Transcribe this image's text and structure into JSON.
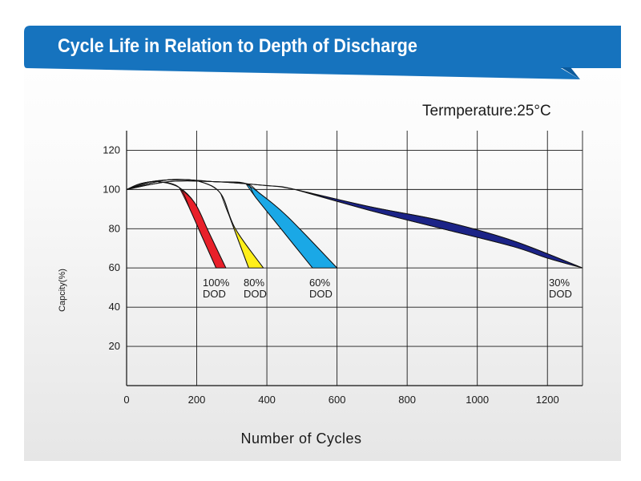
{
  "header": {
    "title": "Cycle Life in Relation to Depth of Discharge"
  },
  "temperature_label": "Termperature:25°C",
  "colors": {
    "banner": "#1673be",
    "banner_dark": "#0b5a9c"
  },
  "chart_data": {
    "type": "area",
    "title": "Cycle Life in Relation to Depth of Discharge",
    "xlabel": "Number of Cycles",
    "ylabel": "Capcity(%)",
    "xlim": [
      0,
      1300
    ],
    "ylim": [
      0,
      130
    ],
    "x_ticks": [
      0,
      200,
      400,
      600,
      800,
      1000,
      1200
    ],
    "y_ticks": [
      20,
      40,
      60,
      80,
      100,
      120
    ],
    "x_grid": [
      200,
      400,
      600,
      800,
      1000,
      1200,
      1300
    ],
    "y_grid": [
      20,
      40,
      60,
      80,
      100,
      120
    ],
    "grid": true,
    "annotation": "Termperature:25°C",
    "series": [
      {
        "label_lines": [
          "100%",
          "DOD"
        ],
        "color": "#e8202a",
        "upper": [
          [
            0,
            100
          ],
          [
            40,
            103
          ],
          [
            90,
            104
          ],
          [
            150,
            101
          ],
          [
            195,
            93
          ],
          [
            235,
            78
          ],
          [
            283,
            60
          ]
        ],
        "lower": [
          [
            0,
            100
          ],
          [
            40,
            103
          ],
          [
            90,
            104
          ],
          [
            150,
            101
          ],
          [
            183,
            89
          ],
          [
            215,
            76
          ],
          [
            255,
            60
          ]
        ]
      },
      {
        "label_lines": [
          "80%",
          "DOD"
        ],
        "color": "#ffef1a",
        "upper": [
          [
            0,
            100
          ],
          [
            70,
            104
          ],
          [
            140,
            105
          ],
          [
            210,
            104
          ],
          [
            268,
            98
          ],
          [
            310,
            80
          ],
          [
            390,
            60
          ]
        ],
        "lower": [
          [
            0,
            100
          ],
          [
            70,
            104
          ],
          [
            140,
            105
          ],
          [
            210,
            104
          ],
          [
            268,
            98
          ],
          [
            300,
            83
          ],
          [
            348,
            60
          ]
        ]
      },
      {
        "label_lines": [
          "60%",
          "DOD"
        ],
        "color": "#1aa8e6",
        "upper": [
          [
            0,
            100
          ],
          [
            120,
            105
          ],
          [
            250,
            104
          ],
          [
            340,
            103
          ],
          [
            380,
            98
          ],
          [
            460,
            86
          ],
          [
            600,
            60
          ]
        ],
        "lower": [
          [
            0,
            100
          ],
          [
            120,
            105
          ],
          [
            250,
            104
          ],
          [
            340,
            103
          ],
          [
            368,
            96
          ],
          [
            440,
            80
          ],
          [
            530,
            60
          ]
        ]
      },
      {
        "label_lines": [
          "30%",
          "DOD"
        ],
        "color": "#1b2387",
        "upper": [
          [
            0,
            100
          ],
          [
            120,
            104
          ],
          [
            250,
            104
          ],
          [
            400,
            102
          ],
          [
            480,
            100
          ],
          [
            700,
            91
          ],
          [
            900,
            84
          ],
          [
            1100,
            74
          ],
          [
            1300,
            60
          ]
        ],
        "lower": [
          [
            0,
            100
          ],
          [
            120,
            104
          ],
          [
            250,
            104
          ],
          [
            400,
            102
          ],
          [
            480,
            100
          ],
          [
            700,
            89
          ],
          [
            900,
            80
          ],
          [
            1100,
            71
          ],
          [
            1200,
            65
          ],
          [
            1300,
            60
          ]
        ]
      }
    ]
  }
}
